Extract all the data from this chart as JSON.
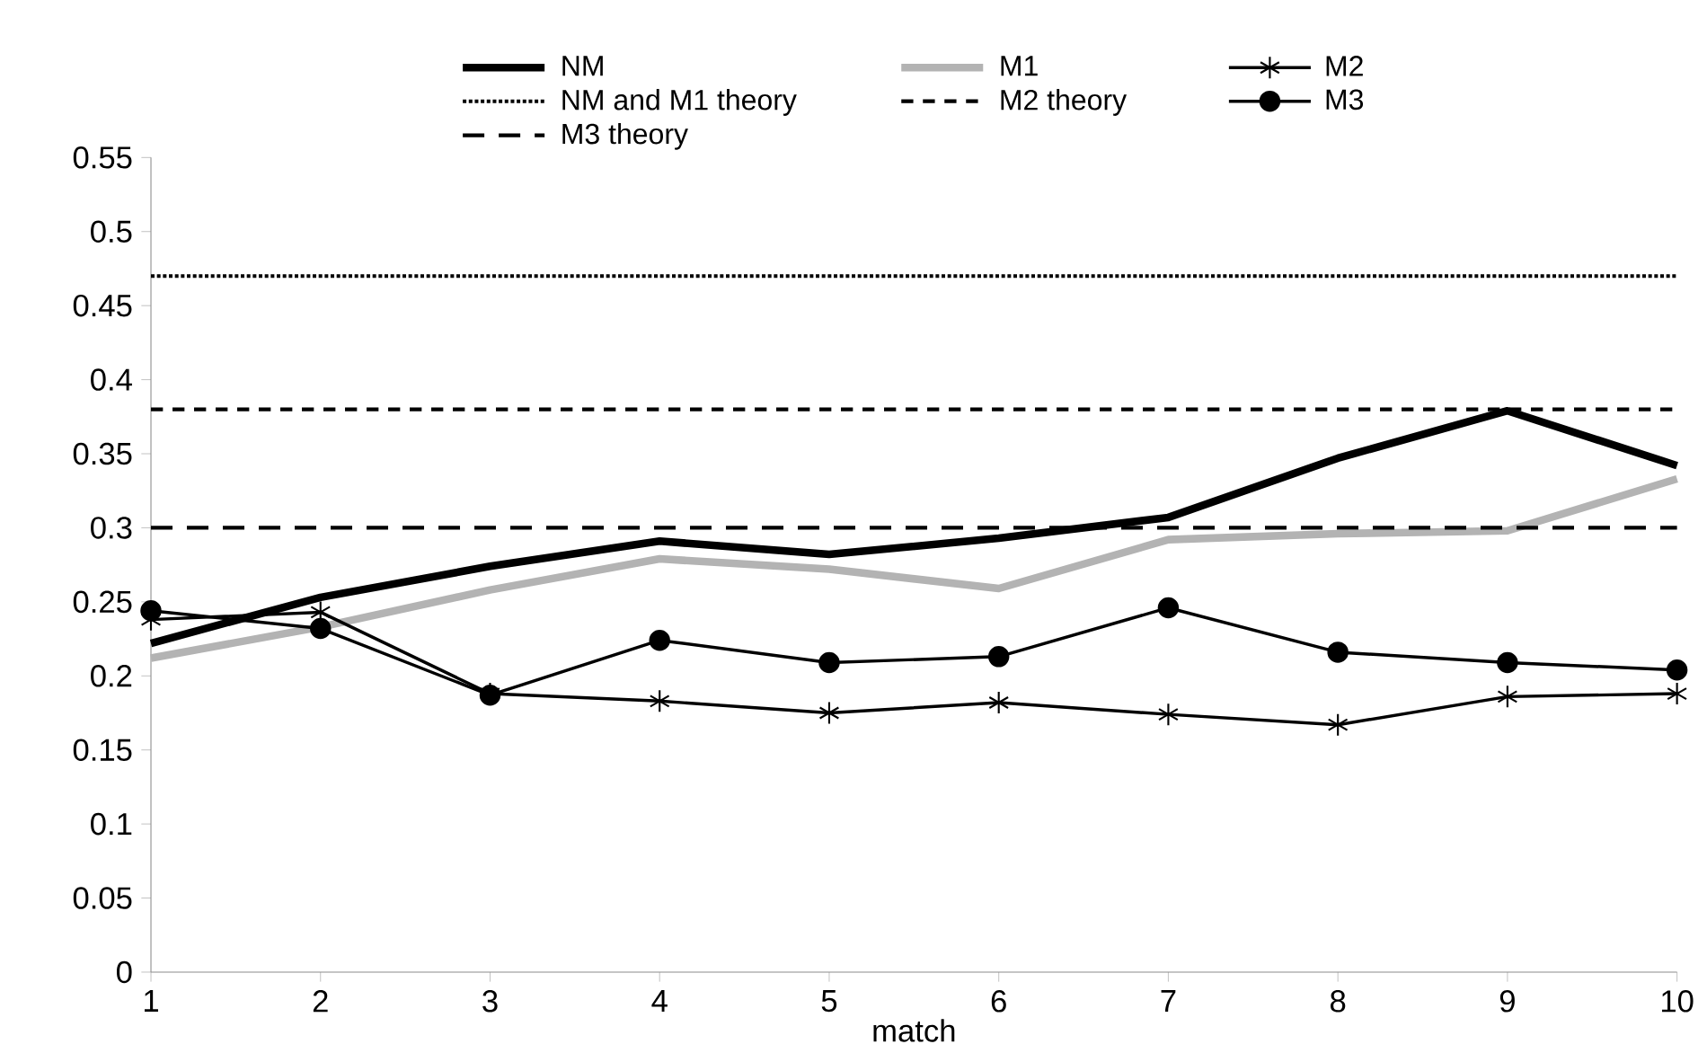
{
  "chart_data": {
    "type": "line",
    "xlabel": "match",
    "x": [
      1,
      2,
      3,
      4,
      5,
      6,
      7,
      8,
      9,
      10
    ],
    "xlim": [
      1,
      10
    ],
    "xticks": [
      1,
      2,
      3,
      4,
      5,
      6,
      7,
      8,
      9,
      10
    ],
    "ylim": [
      0,
      0.55
    ],
    "yticks": [
      0,
      0.05,
      0.1,
      0.15,
      0.2,
      0.25,
      0.3,
      0.35,
      0.4,
      0.45,
      0.5,
      0.55
    ],
    "grid": false,
    "legend": "top",
    "series": [
      {
        "name": "NM",
        "color": "#000000",
        "marker": "none",
        "line_style": "solid",
        "values": [
          0.222,
          0.253,
          0.274,
          0.291,
          0.282,
          0.293,
          0.307,
          0.347,
          0.379,
          0.342
        ]
      },
      {
        "name": "M1",
        "color": "#b3b3b3",
        "marker": "none",
        "line_style": "solid",
        "values": [
          0.212,
          0.233,
          0.258,
          0.279,
          0.272,
          0.259,
          0.292,
          0.296,
          0.298,
          0.333
        ]
      },
      {
        "name": "M2",
        "color": "#000000",
        "marker": "cross",
        "line_style": "solid",
        "values": [
          0.238,
          0.243,
          0.188,
          0.183,
          0.175,
          0.182,
          0.174,
          0.167,
          0.186,
          0.188
        ]
      },
      {
        "name": "NM and M1 theory",
        "color": "#000000",
        "marker": "none",
        "line_style": "dotted",
        "values": [
          0.47,
          0.47,
          0.47,
          0.47,
          0.47,
          0.47,
          0.47,
          0.47,
          0.47,
          0.47
        ]
      },
      {
        "name": "M2 theory",
        "color": "#000000",
        "marker": "none",
        "line_style": "dashed",
        "values": [
          0.38,
          0.38,
          0.38,
          0.38,
          0.38,
          0.38,
          0.38,
          0.38,
          0.38,
          0.38
        ]
      },
      {
        "name": "M3",
        "color": "#000000",
        "marker": "circle",
        "line_style": "solid",
        "values": [
          0.244,
          0.232,
          0.187,
          0.224,
          0.209,
          0.213,
          0.246,
          0.216,
          0.209,
          0.204
        ]
      },
      {
        "name": "M3 theory",
        "color": "#000000",
        "marker": "none",
        "line_style": "dashed",
        "values": [
          0.3,
          0.3,
          0.3,
          0.3,
          0.3,
          0.3,
          0.3,
          0.3,
          0.3,
          0.3
        ]
      }
    ]
  }
}
